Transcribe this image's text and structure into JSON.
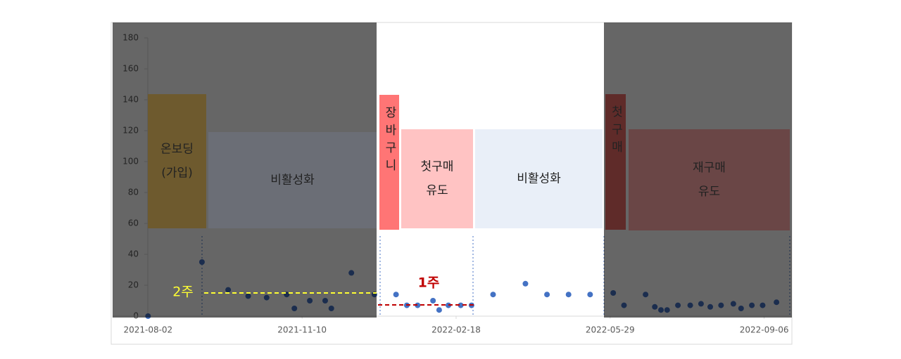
{
  "chart_data": {
    "type": "scatter",
    "x": [
      "2021-08-02",
      "2021-09-06",
      "2021-09-23",
      "2021-10-06",
      "2021-10-18",
      "2021-10-31",
      "2021-11-05",
      "2021-11-15",
      "2021-11-25",
      "2021-11-29",
      "2021-12-12",
      "2021-12-27",
      "2022-01-10",
      "2022-01-17",
      "2022-01-24",
      "2022-02-03",
      "2022-02-07",
      "2022-02-13",
      "2022-02-21",
      "2022-02-28",
      "2022-03-14",
      "2022-04-04",
      "2022-04-18",
      "2022-05-02",
      "2022-05-16",
      "2022-05-31",
      "2022-06-07",
      "2022-06-21",
      "2022-06-27",
      "2022-07-01",
      "2022-07-05",
      "2022-07-12",
      "2022-07-20",
      "2022-07-27",
      "2022-08-02",
      "2022-08-09",
      "2022-08-17",
      "2022-08-22",
      "2022-08-29",
      "2022-09-05",
      "2022-09-14"
    ],
    "values": [
      0,
      35,
      17,
      13,
      12,
      14,
      5,
      10,
      10,
      5,
      28,
      14,
      14,
      7,
      7,
      10,
      4,
      7,
      7,
      7,
      14,
      21,
      14,
      14,
      14,
      15,
      7,
      14,
      6,
      4,
      4,
      7,
      7,
      8,
      6,
      7,
      8,
      5,
      7,
      7,
      9
    ],
    "color": "#4472c4",
    "xlim": [
      "2021-07-10",
      "2022-09-24"
    ],
    "xticks": [
      "2021-08-02",
      "2021-11-10",
      "2022-02-18",
      "2022-05-29",
      "2022-09-06"
    ],
    "ylim": [
      0,
      180
    ],
    "yticks": [
      0,
      20,
      40,
      60,
      80,
      100,
      120,
      140,
      160,
      180
    ]
  },
  "phases": [
    {
      "label": [
        "온보딩",
        "(가입)"
      ]
    },
    {
      "label": [
        "비활성화"
      ]
    },
    {
      "label": [
        "장바구니"
      ]
    },
    {
      "label": [
        "첫구매",
        "유도"
      ]
    },
    {
      "label": [
        "비활성화"
      ]
    },
    {
      "label": [
        "첫구매"
      ]
    },
    {
      "label": [
        "재구매",
        "유도"
      ]
    }
  ],
  "period_labels": [
    "2주",
    "1주"
  ]
}
